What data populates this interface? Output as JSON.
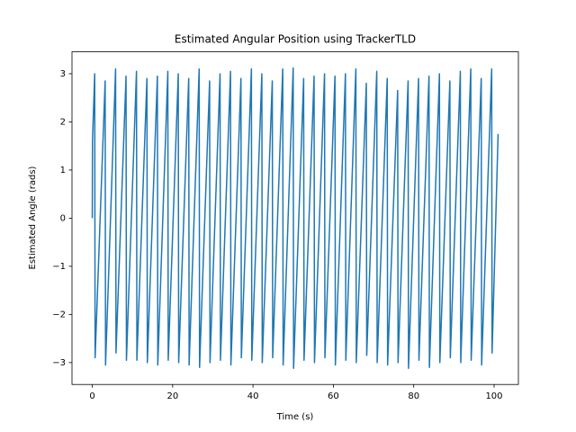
{
  "chart_data": {
    "type": "line",
    "title": "Estimated Angular Position using TrackerTLD",
    "x_label": "Time (s)",
    "y_label": "Estimated Angle (rads)",
    "color": "#1f77b4",
    "xlim": [
      -5.05,
      106.05
    ],
    "ylim": [
      -3.455,
      3.455
    ],
    "xticks": [
      0,
      20,
      40,
      60,
      80,
      100
    ],
    "yticks": [
      {
        "value": -3,
        "label": "−3"
      },
      {
        "value": -2,
        "label": "−2"
      },
      {
        "value": -1,
        "label": "−1"
      },
      0,
      1,
      2,
      3
    ],
    "x": [
      0,
      0.05,
      0.6,
      0.7,
      3.2,
      3.3,
      5.8,
      5.9,
      8.4,
      8.5,
      11.0,
      11.1,
      13.6,
      13.7,
      16.2,
      16.3,
      18.8,
      18.9,
      21.4,
      21.5,
      24.0,
      24.1,
      26.6,
      26.7,
      29.2,
      29.3,
      31.8,
      31.9,
      34.4,
      34.5,
      37.0,
      37.1,
      39.6,
      39.7,
      42.2,
      42.3,
      44.8,
      44.9,
      47.4,
      47.5,
      50.0,
      50.1,
      52.6,
      52.7,
      55.2,
      55.3,
      57.8,
      57.9,
      60.4,
      60.5,
      63.0,
      63.1,
      65.6,
      65.7,
      68.2,
      68.3,
      70.8,
      70.9,
      73.4,
      73.5,
      76.0,
      76.1,
      78.6,
      78.7,
      81.2,
      81.3,
      83.8,
      83.9,
      86.4,
      86.5,
      89.0,
      89.1,
      91.6,
      91.7,
      94.2,
      94.3,
      96.8,
      96.9,
      99.4,
      99.5,
      101
    ],
    "values": [
      0,
      1.6,
      3.0,
      -2.9,
      2.85,
      -3.05,
      3.1,
      -2.8,
      2.95,
      -2.95,
      3.05,
      -2.95,
      2.9,
      -3.0,
      2.95,
      -3.05,
      3.05,
      -2.95,
      3.0,
      -3.0,
      2.9,
      -3.05,
      3.1,
      -3.1,
      2.85,
      -3.0,
      3.0,
      -2.95,
      3.05,
      -3.05,
      2.9,
      -2.9,
      3.1,
      -2.95,
      3.0,
      -3.0,
      2.85,
      -2.9,
      3.1,
      -3.05,
      3.12,
      -3.12,
      2.9,
      -2.95,
      2.95,
      -3.0,
      3.0,
      -2.9,
      2.95,
      -3.05,
      3.0,
      -2.95,
      3.1,
      -3.0,
      2.8,
      -2.85,
      3.05,
      -3.0,
      2.9,
      -3.05,
      2.65,
      -3.0,
      2.85,
      -3.12,
      2.9,
      -2.95,
      2.95,
      -3.1,
      3.0,
      -3.0,
      2.85,
      -2.9,
      3.05,
      -3.0,
      3.1,
      -2.95,
      2.9,
      -3.05,
      3.1,
      -2.8,
      1.75
    ]
  }
}
